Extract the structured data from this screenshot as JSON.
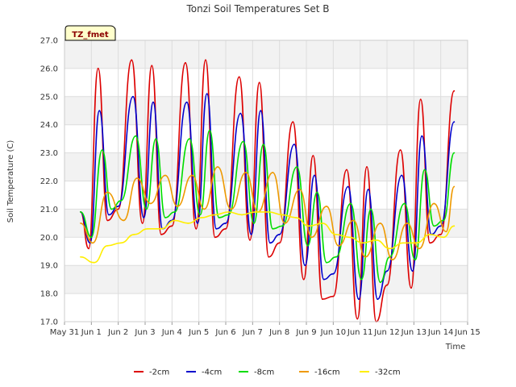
{
  "chart_data": {
    "type": "line",
    "title": "Tonzi Soil Temperatures Set B",
    "xlabel": "Time",
    "ylabel": "Soil Temperature (C)",
    "tag": "TZ_fmet",
    "xlim": [
      0,
      15
    ],
    "ylim": [
      17.0,
      27.0
    ],
    "x_ticks": [
      0,
      1,
      2,
      3,
      4,
      5,
      6,
      7,
      8,
      9,
      10,
      11,
      12,
      13,
      14,
      15
    ],
    "x_tick_labels": [
      "May 31",
      "Jun 1",
      "Jun 2",
      "Jun 3",
      "Jun 4",
      "Jun 5",
      "Jun 6",
      "Jun 7",
      "Jun 8",
      "Jun 9",
      "Jun 10",
      "Jun 11",
      "Jun 12",
      "Jun 13",
      "Jun 14",
      "Jun 15"
    ],
    "y_ticks": [
      17,
      18,
      19,
      20,
      21,
      22,
      23,
      24,
      25,
      26,
      27
    ],
    "y_tick_labels": [
      "17.0",
      "18.0",
      "19.0",
      "20.0",
      "21.0",
      "22.0",
      "23.0",
      "24.0",
      "25.0",
      "26.0",
      "27.0"
    ],
    "grid": true,
    "legend_position": "bottom",
    "series": [
      {
        "name": "-2cm",
        "color": "#dd0000",
        "x": [
          0.6,
          0.9,
          1.25,
          1.6,
          2.0,
          2.5,
          2.9,
          3.25,
          3.6,
          4.0,
          4.5,
          4.9,
          5.25,
          5.6,
          6.0,
          6.5,
          6.9,
          7.25,
          7.6,
          8.0,
          8.5,
          8.9,
          9.25,
          9.6,
          10.0,
          10.5,
          10.9,
          11.25,
          11.6,
          12.0,
          12.5,
          12.9,
          13.25,
          13.6,
          14.0,
          14.5
        ],
        "values": [
          20.9,
          19.6,
          26.0,
          20.6,
          21.0,
          26.3,
          20.5,
          26.1,
          20.1,
          20.4,
          26.2,
          20.3,
          26.3,
          20.0,
          20.3,
          25.7,
          19.9,
          25.5,
          19.3,
          19.8,
          24.1,
          18.5,
          22.9,
          17.8,
          17.9,
          22.4,
          17.1,
          22.5,
          17.0,
          18.3,
          23.1,
          18.2,
          24.9,
          19.8,
          20.1,
          25.2
        ]
      },
      {
        "name": "-4cm",
        "color": "#0000cc",
        "x": [
          0.6,
          0.95,
          1.3,
          1.65,
          2.0,
          2.55,
          2.95,
          3.3,
          3.65,
          4.0,
          4.55,
          4.95,
          5.3,
          5.65,
          6.0,
          6.55,
          6.95,
          7.3,
          7.65,
          8.0,
          8.55,
          8.95,
          9.3,
          9.65,
          10.0,
          10.55,
          10.95,
          11.3,
          11.65,
          12.0,
          12.55,
          12.95,
          13.3,
          13.65,
          14.0,
          14.5
        ],
        "values": [
          20.9,
          19.8,
          24.5,
          20.8,
          21.1,
          25.0,
          20.7,
          24.8,
          20.3,
          20.6,
          24.8,
          20.5,
          25.1,
          20.3,
          20.5,
          24.4,
          20.1,
          24.5,
          19.8,
          20.1,
          23.3,
          19.0,
          22.2,
          18.5,
          18.7,
          21.8,
          17.8,
          21.7,
          17.8,
          18.8,
          22.2,
          18.8,
          23.6,
          20.1,
          20.4,
          24.1
        ]
      },
      {
        "name": "-8cm",
        "color": "#00dd00",
        "x": [
          0.6,
          1.0,
          1.4,
          1.75,
          2.1,
          2.65,
          3.05,
          3.4,
          3.75,
          4.1,
          4.65,
          5.05,
          5.4,
          5.75,
          6.1,
          6.65,
          7.05,
          7.4,
          7.75,
          8.1,
          8.65,
          9.05,
          9.4,
          9.75,
          10.1,
          10.65,
          11.05,
          11.4,
          11.75,
          12.1,
          12.65,
          13.05,
          13.4,
          13.75,
          14.1,
          14.5
        ],
        "values": [
          20.9,
          20.0,
          23.1,
          21.0,
          21.3,
          23.6,
          21.0,
          23.5,
          20.7,
          20.9,
          23.5,
          20.8,
          23.8,
          20.7,
          20.8,
          23.4,
          20.5,
          23.3,
          20.3,
          20.4,
          22.5,
          19.7,
          21.6,
          19.1,
          19.3,
          21.2,
          18.5,
          21.0,
          18.4,
          19.3,
          21.2,
          19.2,
          22.4,
          20.4,
          20.6,
          23.0
        ]
      },
      {
        "name": "-16cm",
        "color": "#ee9900",
        "x": [
          0.6,
          1.05,
          1.6,
          2.2,
          2.7,
          3.2,
          3.75,
          4.2,
          4.75,
          5.2,
          5.7,
          6.2,
          6.75,
          7.2,
          7.75,
          8.2,
          8.75,
          9.2,
          9.75,
          10.2,
          10.75,
          11.2,
          11.75,
          12.2,
          12.75,
          13.2,
          13.75,
          14.2,
          14.5
        ],
        "values": [
          20.5,
          19.8,
          21.6,
          20.6,
          22.1,
          21.2,
          22.2,
          21.1,
          22.2,
          21.0,
          22.5,
          21.0,
          22.3,
          20.9,
          22.3,
          20.5,
          21.7,
          20.0,
          21.1,
          19.7,
          20.6,
          19.3,
          20.5,
          19.2,
          20.5,
          19.6,
          21.2,
          20.2,
          21.8
        ]
      },
      {
        "name": "-32cm",
        "color": "#ffee00",
        "x": [
          0.6,
          1.1,
          1.6,
          2.1,
          2.6,
          3.1,
          3.6,
          4.1,
          4.6,
          5.1,
          5.6,
          6.1,
          6.6,
          7.1,
          7.6,
          8.1,
          8.6,
          9.1,
          9.6,
          10.1,
          10.6,
          11.1,
          11.6,
          12.1,
          12.6,
          13.1,
          13.6,
          14.1,
          14.5
        ],
        "values": [
          19.3,
          19.1,
          19.7,
          19.8,
          20.1,
          20.3,
          20.3,
          20.6,
          20.5,
          20.7,
          20.8,
          20.9,
          20.8,
          20.9,
          20.9,
          20.8,
          20.7,
          20.4,
          20.5,
          20.1,
          20.0,
          19.8,
          19.9,
          19.6,
          19.8,
          19.8,
          20.1,
          20.0,
          20.4
        ]
      }
    ]
  }
}
